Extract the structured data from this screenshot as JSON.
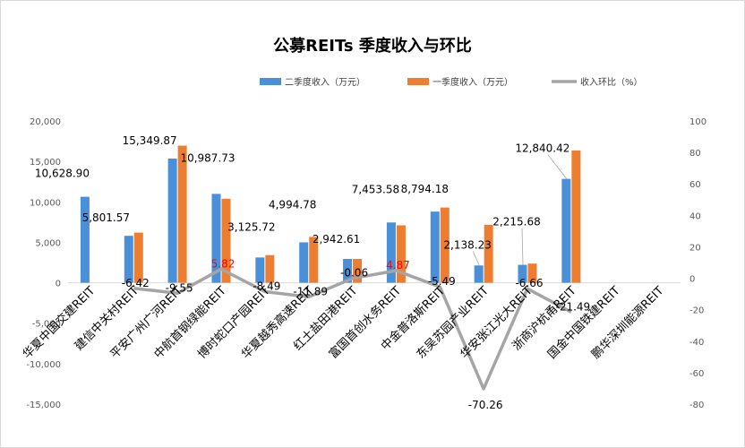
{
  "chart_data": {
    "type": "bar",
    "title": "公募REITs 季度收入与环比",
    "categories": [
      "华夏中国交建REIT",
      "建信中关村REIT",
      "平安广州广河REIT",
      "中航首钢绿能REIT",
      "博时蛇口产园REIT",
      "华夏越秀高速REIT",
      "红土盐田港REIT",
      "富国首创水务REIT",
      "中金普洛斯REIT",
      "东吴苏园产业REIT",
      "华安张江光大REIT",
      "浙商沪杭甬REIT",
      "国金中国铁建REIT",
      "鹏华深圳能源REIT"
    ],
    "series": [
      {
        "name": "二季度收入（万元）",
        "type": "bar",
        "axis": "left",
        "color": "#4a90d9",
        "values": [
          10628.9,
          5801.57,
          15349.87,
          10987.73,
          3125.72,
          4994.78,
          2942.61,
          7453.58,
          8794.18,
          2138.23,
          2215.68,
          12840.42,
          null,
          null
        ],
        "data_labels": [
          "10,628.90",
          "5,801.57",
          "15,349.87",
          "10,987.73",
          "3,125.72",
          "4,994.78",
          "2,942.61",
          "7,453.58",
          "8,794.18",
          "2,138.23",
          "2,215.68",
          "12,840.42",
          "",
          ""
        ]
      },
      {
        "name": "一季度收入（万元）",
        "type": "bar",
        "axis": "left",
        "color": "#ed7d31",
        "values": [
          null,
          6200,
          16950,
          10380,
          3420,
          5670,
          2945,
          7100,
          9300,
          7170,
          2370,
          16350,
          null,
          null
        ]
      },
      {
        "name": "收入环比（%）",
        "type": "line",
        "axis": "right",
        "color": "#a5a5a5",
        "values": [
          null,
          -6.42,
          -9.55,
          5.82,
          -8.49,
          -11.89,
          -0.06,
          4.87,
          -5.49,
          -70.26,
          -6.66,
          -21.49,
          null,
          null
        ],
        "data_labels": [
          "",
          "-6.42",
          "-9.55",
          "5.82",
          "-8.49",
          "-11.89",
          "-0.06",
          "4.87",
          "-5.49",
          "-70.26",
          "-6.66",
          "-21.49",
          "",
          ""
        ],
        "positive_label_color": "#ff0000"
      }
    ],
    "y_left": {
      "min": -15000,
      "max": 20000,
      "step": 5000,
      "ticks": [
        "-15,000",
        "-10,000",
        "-5,000",
        "0",
        "5,000",
        "10,000",
        "15,000",
        "20,000"
      ]
    },
    "y_right": {
      "min": -80,
      "max": 100,
      "step": 20,
      "ticks": [
        "-80",
        "-60",
        "-40",
        "-20",
        "0",
        "20",
        "40",
        "60",
        "80",
        "100"
      ]
    },
    "legend_position": "top",
    "grid": false
  }
}
